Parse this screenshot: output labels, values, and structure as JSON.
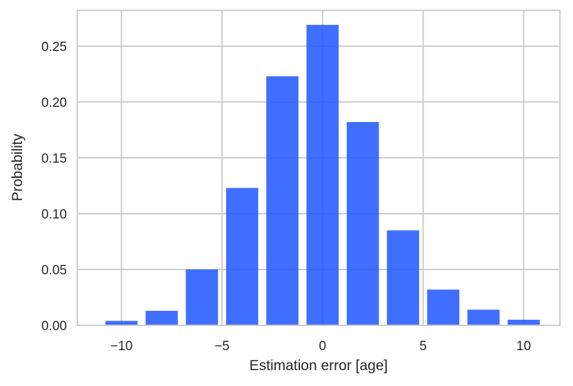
{
  "chart_data": {
    "type": "bar",
    "xlabel": "Estimation error [age]",
    "ylabel": "Probability",
    "xlim": [
      -12.2,
      11.8
    ],
    "ylim": [
      0,
      0.282
    ],
    "grid": true,
    "bar_color": "#1f56ff",
    "bar_width": 1.6,
    "x": [
      -10,
      -8,
      -6,
      -4,
      -2,
      0,
      2,
      4,
      6,
      8,
      10
    ],
    "values": [
      0.004,
      0.013,
      0.05,
      0.123,
      0.223,
      0.269,
      0.182,
      0.085,
      0.032,
      0.014,
      0.005
    ],
    "xticks": [
      -10,
      -5,
      0,
      5,
      10
    ],
    "xtick_labels": [
      "−10",
      "−5",
      "0",
      "5",
      "10"
    ],
    "yticks": [
      0.0,
      0.05,
      0.1,
      0.15,
      0.2,
      0.25
    ],
    "ytick_labels": [
      "0.00",
      "0.05",
      "0.10",
      "0.15",
      "0.20",
      "0.25"
    ]
  }
}
